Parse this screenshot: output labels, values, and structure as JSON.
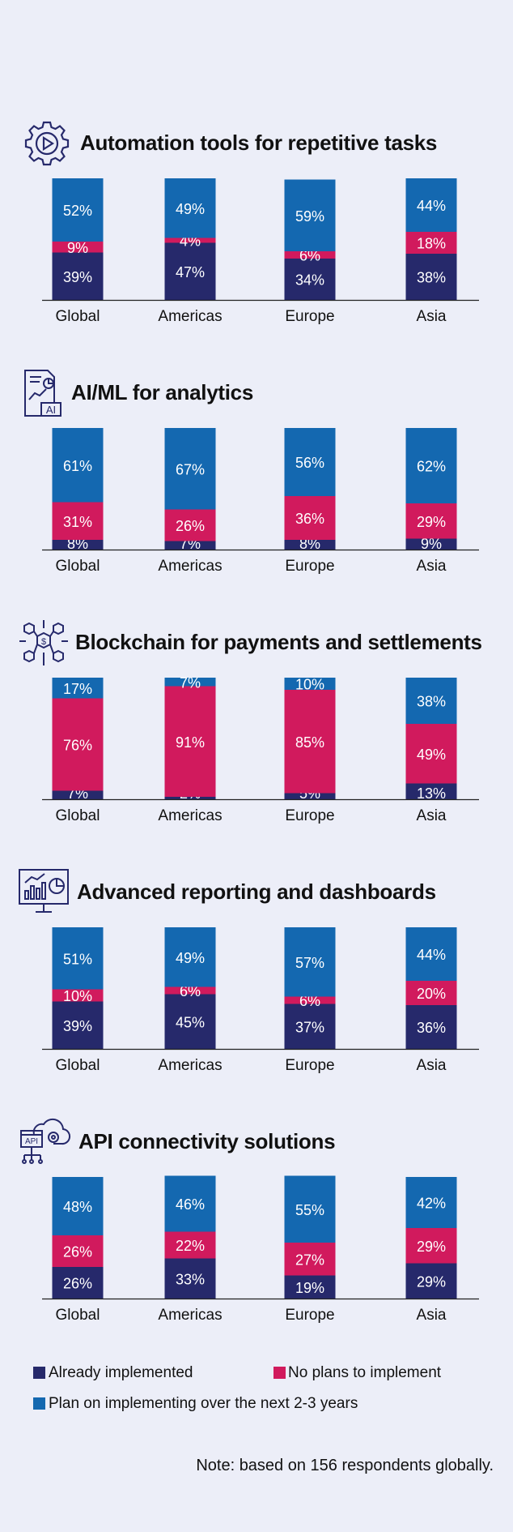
{
  "colors": {
    "implemented": "#26296b",
    "no_plans": "#d11a5d",
    "plan": "#1468b0",
    "background": "#eceef8"
  },
  "legend": {
    "implemented": "Already implemented",
    "no_plans": "No plans to implement",
    "plan": "Plan on implementing over the next 2-3 years"
  },
  "note": "Note: based on 156 respondents globally.",
  "chart_data": [
    {
      "type": "bar",
      "stacked": true,
      "title": "Automation tools for repetitive tasks",
      "icon": "automation-gear-icon",
      "categories": [
        "Global",
        "Americas",
        "Europe",
        "Asia"
      ],
      "series": [
        {
          "name": "Already implemented",
          "values": [
            39,
            47,
            34,
            38
          ]
        },
        {
          "name": "No plans to implement",
          "values": [
            9,
            4,
            6,
            18
          ]
        },
        {
          "name": "Plan on implementing over the next 2-3 years",
          "values": [
            52,
            49,
            59,
            44
          ]
        }
      ],
      "ylim": [
        0,
        100
      ]
    },
    {
      "type": "bar",
      "stacked": true,
      "title": "AI/ML for analytics",
      "icon": "ai-report-icon",
      "categories": [
        "Global",
        "Americas",
        "Europe",
        "Asia"
      ],
      "series": [
        {
          "name": "Already implemented",
          "values": [
            8,
            7,
            8,
            9
          ]
        },
        {
          "name": "No plans to implement",
          "values": [
            31,
            26,
            36,
            29
          ]
        },
        {
          "name": "Plan on implementing over the next 2-3 years",
          "values": [
            61,
            67,
            56,
            62
          ]
        }
      ],
      "ylim": [
        0,
        100
      ]
    },
    {
      "type": "bar",
      "stacked": true,
      "title": "Blockchain for payments and settlements",
      "icon": "blockchain-cubes-icon",
      "categories": [
        "Global",
        "Americas",
        "Europe",
        "Asia"
      ],
      "series": [
        {
          "name": "Already implemented",
          "values": [
            7,
            2,
            5,
            13
          ]
        },
        {
          "name": "No plans to implement",
          "values": [
            76,
            91,
            85,
            49
          ]
        },
        {
          "name": "Plan on implementing over the next 2-3 years",
          "values": [
            17,
            7,
            10,
            38
          ]
        }
      ],
      "ylim": [
        0,
        100
      ]
    },
    {
      "type": "bar",
      "stacked": true,
      "title": "Advanced reporting and dashboards",
      "icon": "dashboard-monitor-icon",
      "categories": [
        "Global",
        "Americas",
        "Europe",
        "Asia"
      ],
      "series": [
        {
          "name": "Already implemented",
          "values": [
            39,
            45,
            37,
            36
          ]
        },
        {
          "name": "No plans to implement",
          "values": [
            10,
            6,
            6,
            20
          ]
        },
        {
          "name": "Plan on implementing over the next 2-3 years",
          "values": [
            51,
            49,
            57,
            44
          ]
        }
      ],
      "ylim": [
        0,
        100
      ]
    },
    {
      "type": "bar",
      "stacked": true,
      "title": "API connectivity solutions",
      "icon": "api-cloud-icon",
      "categories": [
        "Global",
        "Americas",
        "Europe",
        "Asia"
      ],
      "series": [
        {
          "name": "Already implemented",
          "values": [
            26,
            33,
            19,
            29
          ]
        },
        {
          "name": "No plans to implement",
          "values": [
            26,
            22,
            27,
            29
          ]
        },
        {
          "name": "Plan on implementing over the next 2-3 years",
          "values": [
            48,
            46,
            55,
            42
          ]
        }
      ],
      "ylim": [
        0,
        100
      ]
    }
  ]
}
